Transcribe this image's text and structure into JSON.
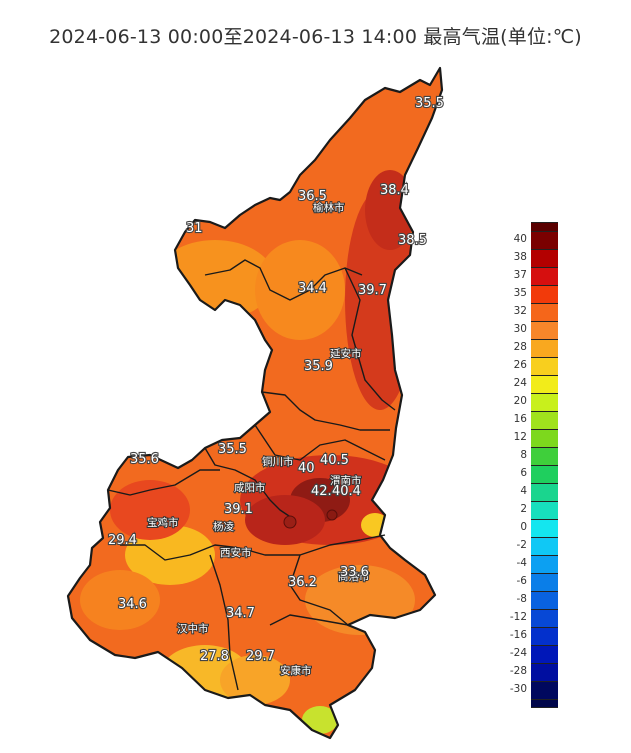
{
  "title": "2024-06-13 00:00至2024-06-13 14:00 最高气温(单位:℃)",
  "legend": {
    "labels": [
      "40",
      "38",
      "37",
      "35",
      "32",
      "30",
      "28",
      "26",
      "24",
      "20",
      "16",
      "12",
      "8",
      "6",
      "4",
      "2",
      "0",
      "-2",
      "-4",
      "-6",
      "-8",
      "-12",
      "-16",
      "-24",
      "-28",
      "-30"
    ],
    "colors": [
      "#7a0000",
      "#b30000",
      "#d60f0f",
      "#f23a0a",
      "#f5661a",
      "#f7862a",
      "#f9a81f",
      "#f8cf1e",
      "#f2ec1a",
      "#c8f01c",
      "#a0e21d",
      "#7dd81d",
      "#3fcf3b",
      "#1fcf5e",
      "#1ad58e",
      "#17dfbd",
      "#14e6ef",
      "#10c8f5",
      "#0ca0f2",
      "#0a7ee8",
      "#0962e0",
      "#0748d6",
      "#0330cc",
      "#0017b8",
      "#000ea0",
      "#00085e"
    ]
  },
  "stations": [
    {
      "value": "35.5"
    },
    {
      "value": "36.5"
    },
    {
      "value": "38.4"
    },
    {
      "value": "38.5"
    },
    {
      "value": "31"
    },
    {
      "value": "34.4"
    },
    {
      "value": "39.7"
    },
    {
      "value": "35.9"
    },
    {
      "value": "35.5"
    },
    {
      "value": "35.6"
    },
    {
      "value": "40"
    },
    {
      "value": "40.5"
    },
    {
      "value": "42.4"
    },
    {
      "value": "40.4"
    },
    {
      "value": "39.1"
    },
    {
      "value": "29.4"
    },
    {
      "value": "33.6"
    },
    {
      "value": "36.2"
    },
    {
      "value": "34.6"
    },
    {
      "value": "34.7"
    },
    {
      "value": "27.8"
    },
    {
      "value": "29.7"
    }
  ],
  "cities": [
    {
      "name": "榆林市"
    },
    {
      "name": "延安市"
    },
    {
      "name": "铜川市"
    },
    {
      "name": "咸阳市"
    },
    {
      "name": "渭南市"
    },
    {
      "name": "宝鸡市"
    },
    {
      "name": "杨凌"
    },
    {
      "name": "西安市"
    },
    {
      "name": "商洛市"
    },
    {
      "name": "汉中市"
    },
    {
      "name": "安康市"
    }
  ]
}
